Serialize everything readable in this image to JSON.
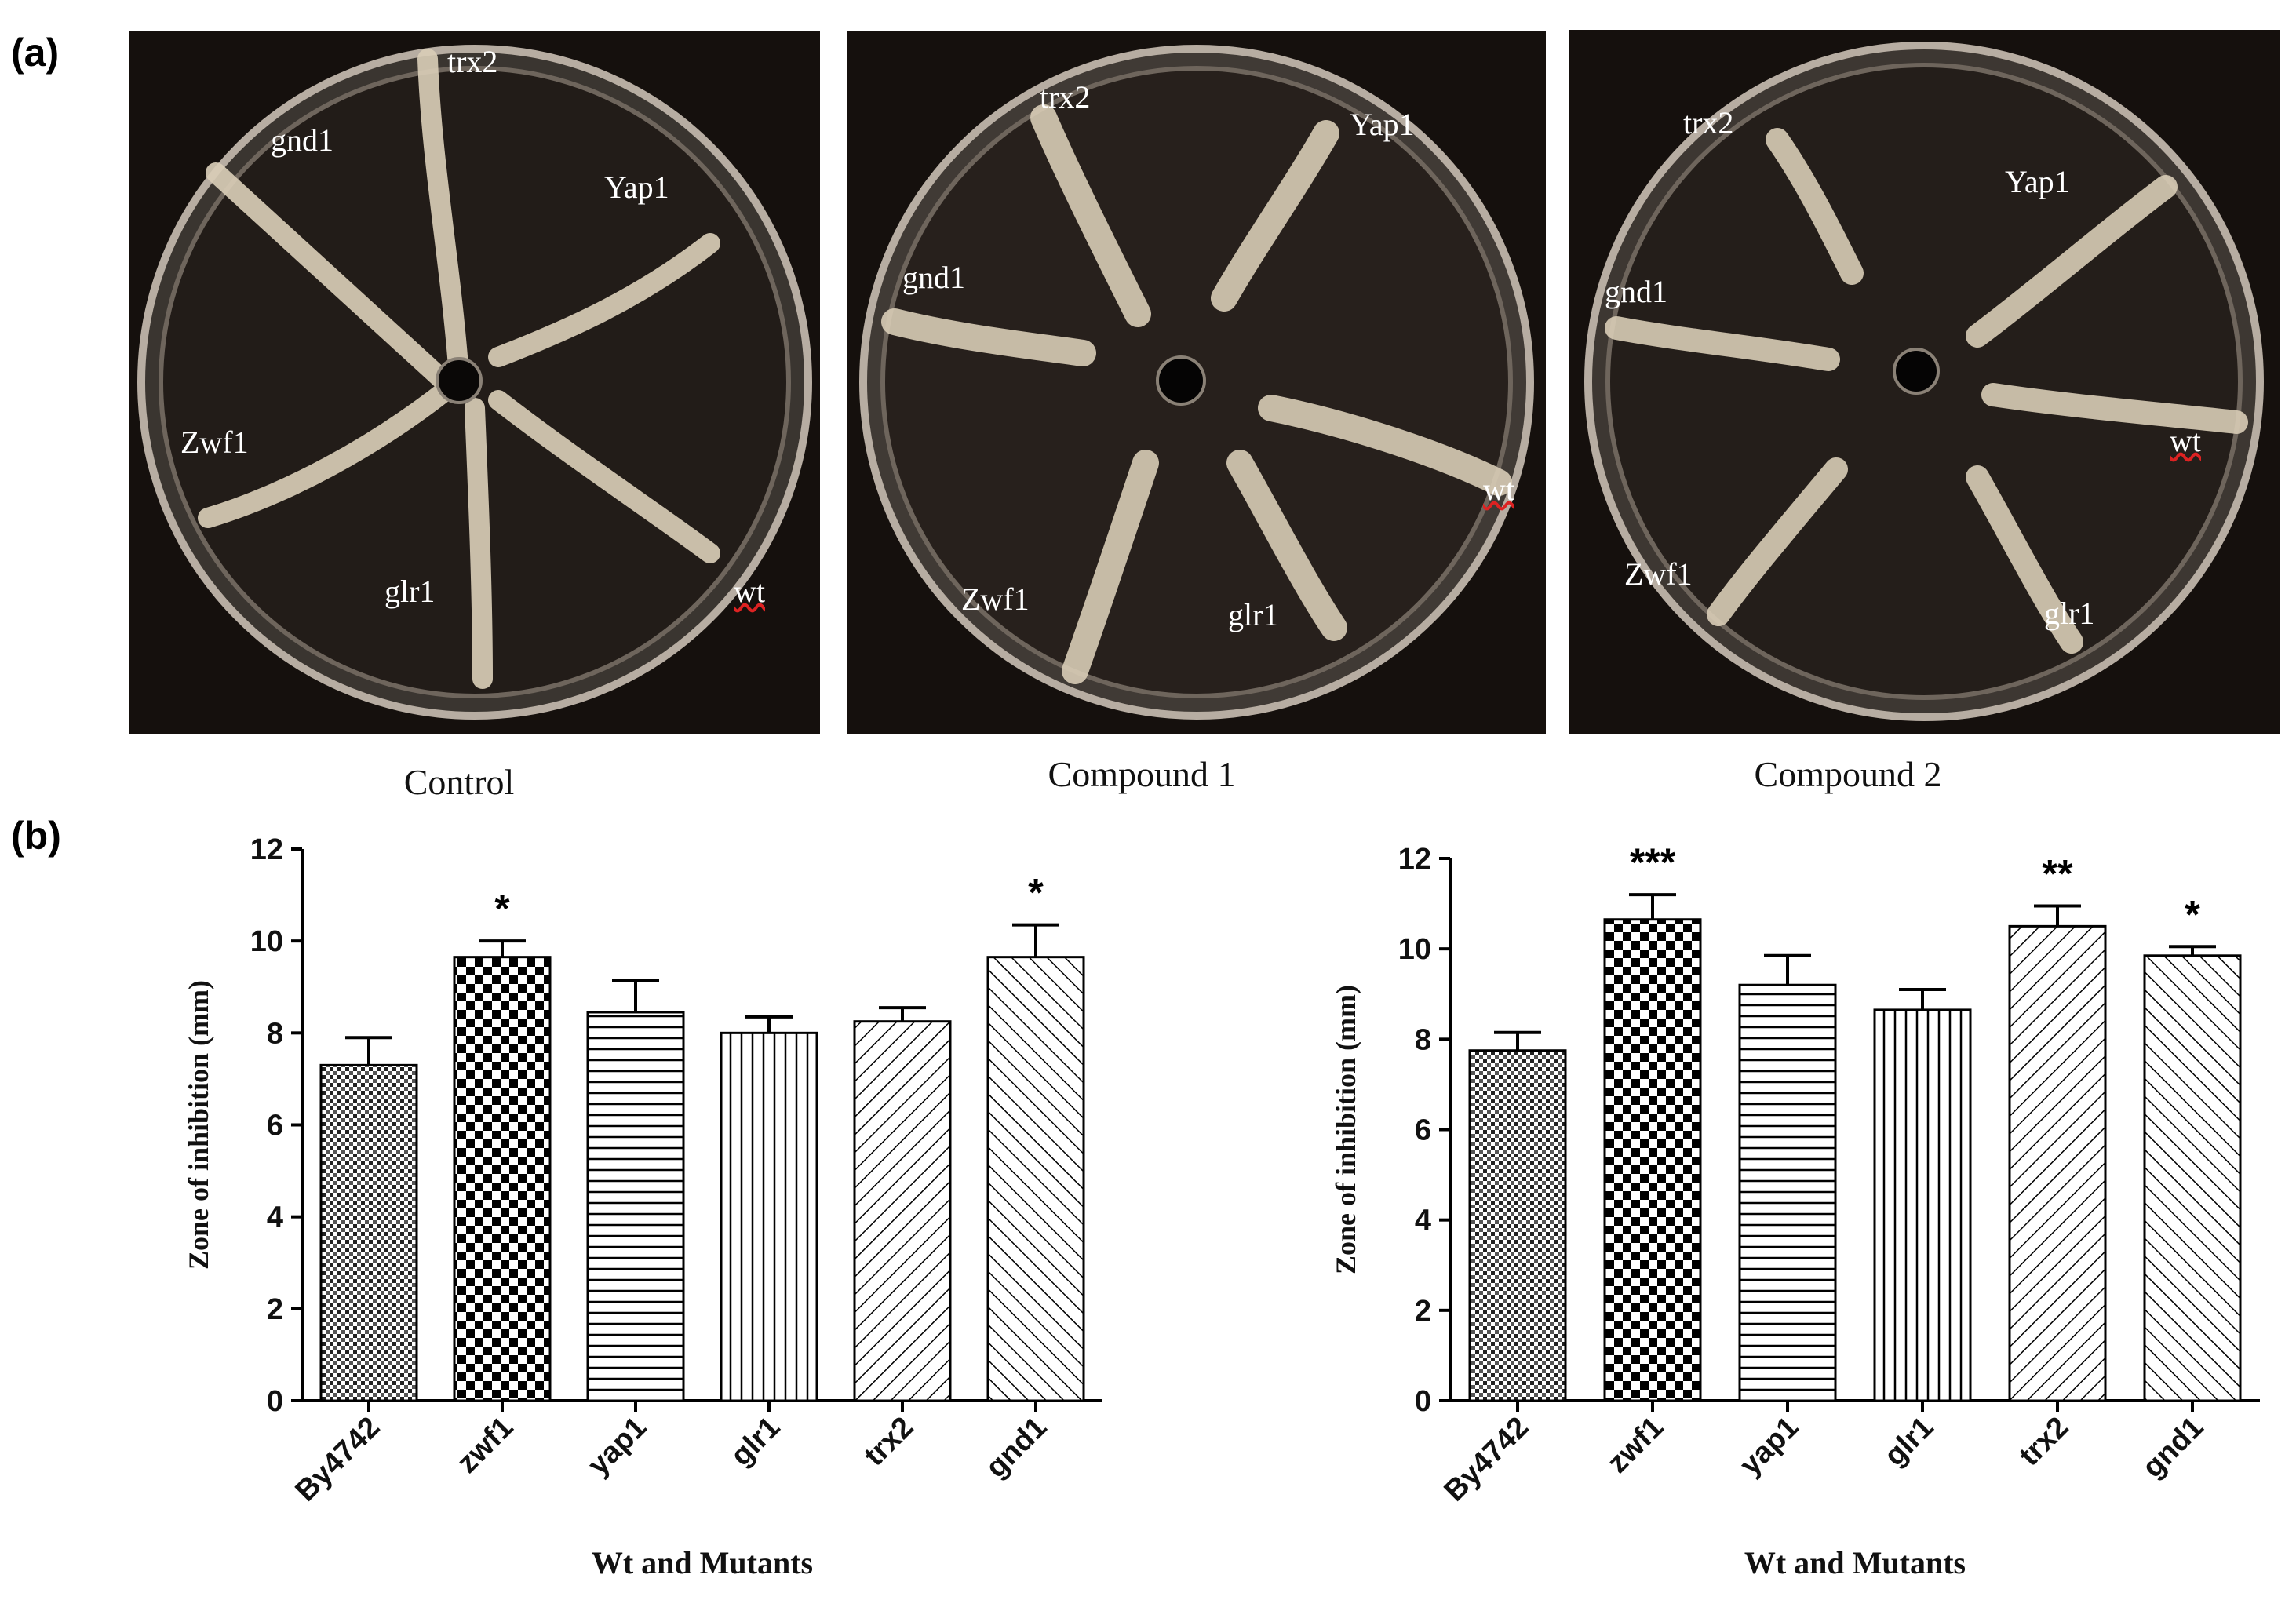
{
  "figure": {
    "panel_a_label": "(a)",
    "panel_b_label": "(b)"
  },
  "plates": [
    {
      "caption": "Control",
      "strains": [
        {
          "label": "trx2"
        },
        {
          "label": "gnd1"
        },
        {
          "label": "Yap1"
        },
        {
          "label": "Zwf1"
        },
        {
          "label": "glr1"
        },
        {
          "label": "wt"
        }
      ]
    },
    {
      "caption": "Compound  1",
      "strains": [
        {
          "label": "trx2"
        },
        {
          "label": "Yap1"
        },
        {
          "label": "gnd1"
        },
        {
          "label": "wt"
        },
        {
          "label": "Zwf1"
        },
        {
          "label": "glr1"
        }
      ]
    },
    {
      "caption": "Compound  2",
      "strains": [
        {
          "label": "trx2"
        },
        {
          "label": "Yap1"
        },
        {
          "label": "gnd1"
        },
        {
          "label": "wt"
        },
        {
          "label": "Zwf1"
        },
        {
          "label": "glr1"
        }
      ]
    }
  ],
  "chart_data": [
    {
      "type": "bar",
      "title": "",
      "xlabel": "Wt and Mutants",
      "ylabel": "Zone of inhibition (mm)",
      "ylim": [
        0,
        12
      ],
      "yticks": [
        "0",
        "2",
        "4",
        "6",
        "8",
        "10",
        "12"
      ],
      "categories": [
        "By4742",
        "zwf1",
        "yap1",
        "glr1",
        "trx2",
        "gnd1"
      ],
      "values": [
        7.3,
        9.65,
        8.45,
        8.0,
        8.25,
        9.65
      ],
      "errors": [
        0.6,
        0.35,
        0.7,
        0.35,
        0.3,
        0.7
      ],
      "significance": [
        "",
        "*",
        "",
        "",
        "",
        "*"
      ],
      "patterns": [
        "dots",
        "checker",
        "hlines",
        "vlines",
        "diag-right",
        "diag-left"
      ]
    },
    {
      "type": "bar",
      "title": "",
      "xlabel": "Wt and Mutants",
      "ylabel": "Zone of inhibition (mm)",
      "ylim": [
        0,
        12
      ],
      "yticks": [
        "0",
        "2",
        "4",
        "6",
        "8",
        "10",
        "12"
      ],
      "categories": [
        "By4742",
        "zwf1",
        "yap1",
        "glr1",
        "trx2",
        "gnd1"
      ],
      "values": [
        7.75,
        10.65,
        9.2,
        8.65,
        10.5,
        9.85
      ],
      "errors": [
        0.4,
        0.55,
        0.65,
        0.45,
        0.45,
        0.2
      ],
      "significance": [
        "",
        "***",
        "",
        "",
        "**",
        "*"
      ],
      "patterns": [
        "dots",
        "checker",
        "hlines",
        "vlines",
        "diag-right",
        "diag-left"
      ]
    }
  ]
}
